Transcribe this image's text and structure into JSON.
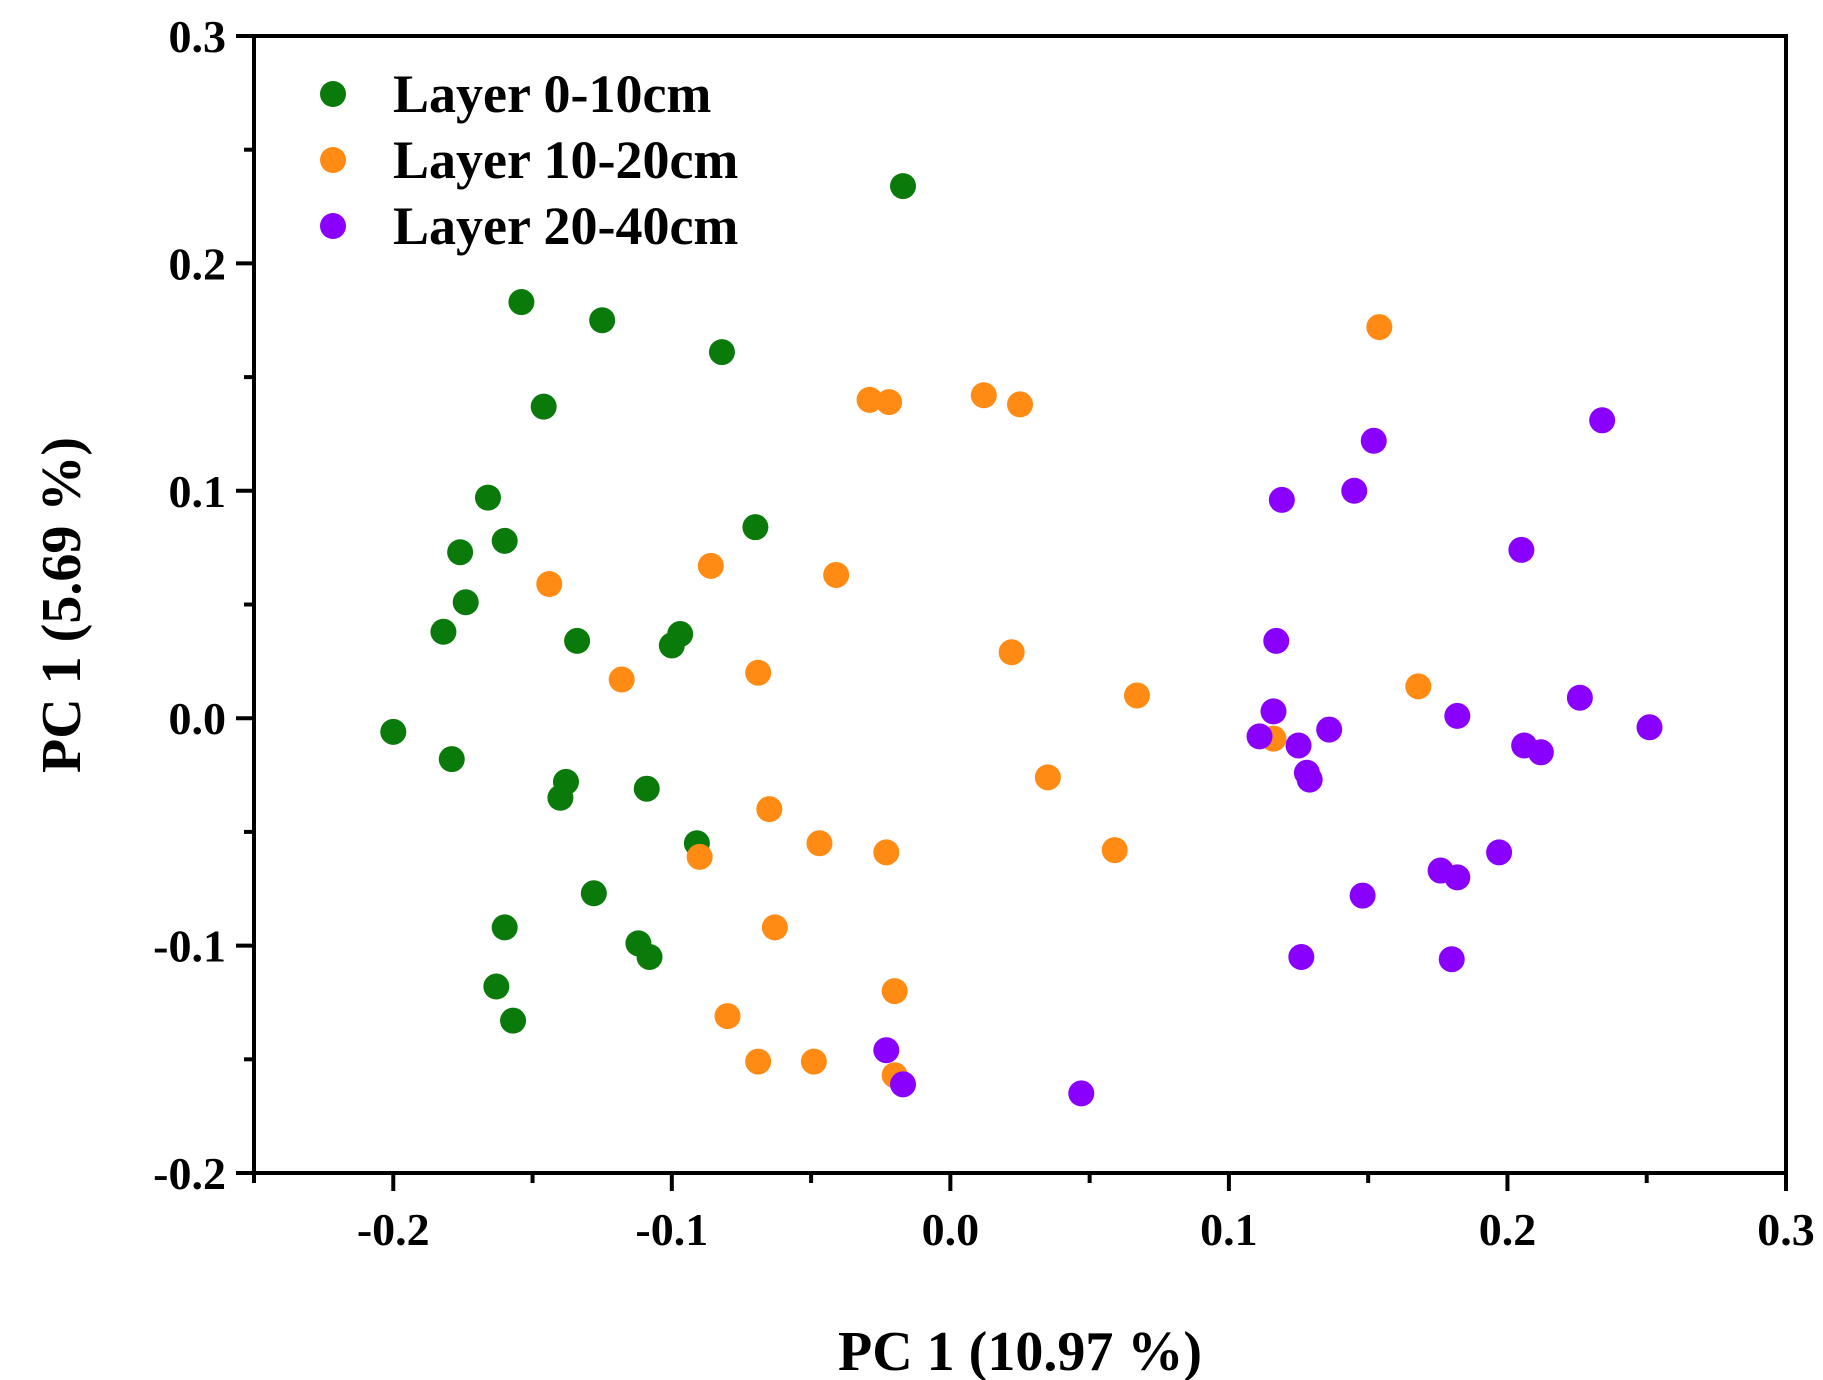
{
  "chart_data": {
    "type": "scatter",
    "xlabel": "PC 1 (10.97 %)",
    "ylabel": "PC 1 (5.69 %)",
    "xlim": [
      -0.25,
      0.3
    ],
    "ylim": [
      -0.2,
      0.3
    ],
    "x_ticks": [
      "-0.2",
      "-0.1",
      "0.0",
      "0.1",
      "0.2",
      "0.3"
    ],
    "y_ticks": [
      "0.3",
      "0.2",
      "0.1",
      "0.0",
      "-0.1",
      "-0.2"
    ],
    "grid": false,
    "legend_position": "top-left",
    "series": [
      {
        "name": "Layer 0-10cm",
        "color": "#0a7a0a",
        "points": [
          [
            -0.017,
            0.234
          ],
          [
            -0.154,
            0.183
          ],
          [
            -0.125,
            0.175
          ],
          [
            -0.082,
            0.161
          ],
          [
            -0.146,
            0.137
          ],
          [
            -0.166,
            0.097
          ],
          [
            -0.16,
            0.078
          ],
          [
            -0.176,
            0.073
          ],
          [
            -0.07,
            0.084
          ],
          [
            -0.174,
            0.051
          ],
          [
            -0.182,
            0.038
          ],
          [
            -0.134,
            0.034
          ],
          [
            -0.097,
            0.037
          ],
          [
            -0.1,
            0.032
          ],
          [
            -0.2,
            -0.006
          ],
          [
            -0.179,
            -0.018
          ],
          [
            -0.138,
            -0.028
          ],
          [
            -0.14,
            -0.035
          ],
          [
            -0.109,
            -0.031
          ],
          [
            -0.091,
            -0.055
          ],
          [
            -0.128,
            -0.077
          ],
          [
            -0.16,
            -0.092
          ],
          [
            -0.112,
            -0.099
          ],
          [
            -0.108,
            -0.105
          ],
          [
            -0.163,
            -0.118
          ],
          [
            -0.157,
            -0.133
          ]
        ]
      },
      {
        "name": "Layer 10-20cm",
        "color": "#ff8a14",
        "points": [
          [
            0.154,
            0.172
          ],
          [
            -0.029,
            0.14
          ],
          [
            -0.022,
            0.139
          ],
          [
            0.012,
            0.142
          ],
          [
            0.025,
            0.138
          ],
          [
            -0.144,
            0.059
          ],
          [
            -0.086,
            0.067
          ],
          [
            -0.041,
            0.063
          ],
          [
            -0.118,
            0.017
          ],
          [
            -0.069,
            0.02
          ],
          [
            0.022,
            0.029
          ],
          [
            0.067,
            0.01
          ],
          [
            0.168,
            0.014
          ],
          [
            0.116,
            -0.009
          ],
          [
            0.035,
            -0.026
          ],
          [
            -0.065,
            -0.04
          ],
          [
            -0.047,
            -0.055
          ],
          [
            -0.023,
            -0.059
          ],
          [
            0.059,
            -0.058
          ],
          [
            -0.09,
            -0.061
          ],
          [
            -0.063,
            -0.092
          ],
          [
            -0.02,
            -0.12
          ],
          [
            -0.08,
            -0.131
          ],
          [
            -0.069,
            -0.151
          ],
          [
            -0.049,
            -0.151
          ],
          [
            -0.02,
            -0.157
          ]
        ]
      },
      {
        "name": "Layer 20-40cm",
        "color": "#8a00ff",
        "points": [
          [
            0.234,
            0.131
          ],
          [
            0.152,
            0.122
          ],
          [
            0.145,
            0.1
          ],
          [
            0.119,
            0.096
          ],
          [
            0.205,
            0.074
          ],
          [
            0.117,
            0.034
          ],
          [
            0.226,
            0.009
          ],
          [
            0.116,
            0.003
          ],
          [
            0.182,
            0.001
          ],
          [
            0.136,
            -0.005
          ],
          [
            0.251,
            -0.004
          ],
          [
            0.111,
            -0.008
          ],
          [
            0.125,
            -0.012
          ],
          [
            0.206,
            -0.012
          ],
          [
            0.212,
            -0.015
          ],
          [
            0.128,
            -0.024
          ],
          [
            0.129,
            -0.027
          ],
          [
            0.197,
            -0.059
          ],
          [
            0.176,
            -0.067
          ],
          [
            0.182,
            -0.07
          ],
          [
            0.148,
            -0.078
          ],
          [
            0.126,
            -0.105
          ],
          [
            0.18,
            -0.106
          ],
          [
            -0.023,
            -0.146
          ],
          [
            -0.017,
            -0.161
          ],
          [
            0.047,
            -0.165
          ]
        ]
      }
    ]
  }
}
